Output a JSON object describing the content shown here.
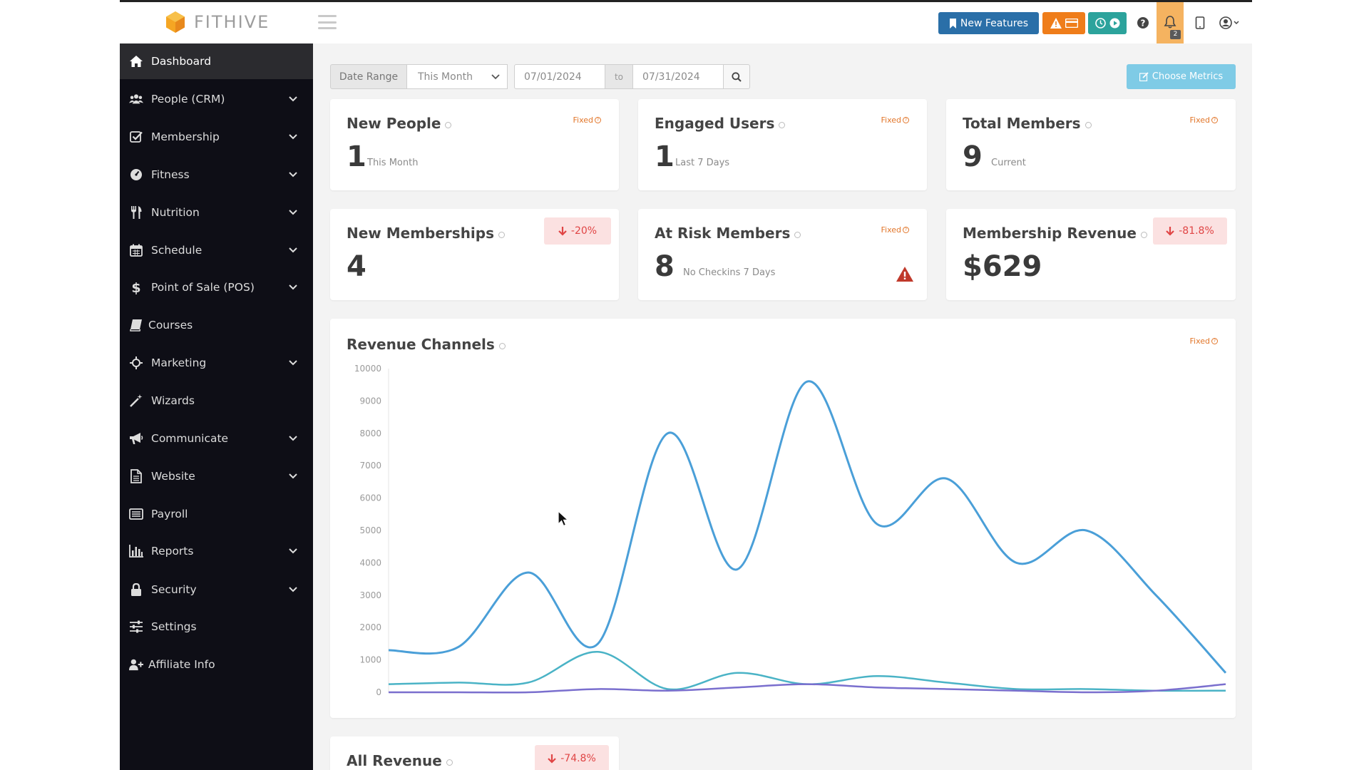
{
  "app": {
    "brand": "FITHIVE"
  },
  "topbar": {
    "new_features_label": "New Features",
    "notification_count": "2",
    "icons": [
      "bookmark-icon",
      "warning-icon",
      "card-icon",
      "clock-icon",
      "play-icon",
      "help-icon",
      "bell-icon",
      "tablet-icon",
      "user-circle-icon"
    ]
  },
  "sidebar": {
    "items": [
      {
        "label": "Dashboard",
        "icon": "home-icon",
        "active": true,
        "has_children": false
      },
      {
        "label": "People (CRM)",
        "icon": "people-icon",
        "has_children": true
      },
      {
        "label": "Membership",
        "icon": "checkbox-icon",
        "has_children": true
      },
      {
        "label": "Fitness",
        "icon": "tachometer-icon",
        "has_children": true
      },
      {
        "label": "Nutrition",
        "icon": "utensils-icon",
        "has_children": true
      },
      {
        "label": "Schedule",
        "icon": "calendar-icon",
        "has_children": true
      },
      {
        "label": "Point of Sale (POS)",
        "icon": "dollar-icon",
        "has_children": true
      },
      {
        "label": "Courses",
        "icon": "book-icon",
        "has_children": false
      },
      {
        "label": "Marketing",
        "icon": "crosshair-icon",
        "has_children": true
      },
      {
        "label": "Wizards",
        "icon": "magic-wand-icon",
        "has_children": false
      },
      {
        "label": "Communicate",
        "icon": "bullhorn-icon",
        "has_children": true
      },
      {
        "label": "Website",
        "icon": "file-icon",
        "has_children": true
      },
      {
        "label": "Payroll",
        "icon": "list-alt-icon",
        "has_children": false
      },
      {
        "label": "Reports",
        "icon": "bar-chart-icon",
        "has_children": true
      },
      {
        "label": "Security",
        "icon": "lock-icon",
        "has_children": true
      },
      {
        "label": "Settings",
        "icon": "sliders-icon",
        "has_children": false
      },
      {
        "label": "Affiliate Info",
        "icon": "user-plus-icon",
        "has_children": false
      }
    ]
  },
  "filters": {
    "date_range_label": "Date Range",
    "range_select": "This Month",
    "start_date": "07/01/2024",
    "to_label": "to",
    "end_date": "07/31/2024",
    "choose_metrics_label": "Choose Metrics"
  },
  "cards": {
    "new_people": {
      "title": "New People",
      "fixed": "Fixed",
      "value": "1",
      "sub": "This Month"
    },
    "engaged_users": {
      "title": "Engaged Users",
      "fixed": "Fixed",
      "value": "1",
      "sub": "Last 7 Days"
    },
    "total_members": {
      "title": "Total Members",
      "fixed": "Fixed",
      "value": "9",
      "sub": "Current"
    },
    "new_memberships": {
      "title": "New Memberships",
      "trend": "-20%",
      "value": "4"
    },
    "at_risk_members": {
      "title": "At Risk Members",
      "fixed": "Fixed",
      "value": "8",
      "sub": "No Checkins 7 Days"
    },
    "membership_revenue": {
      "title": "Membership Revenue",
      "trend": "-81.8%",
      "value": "$629"
    },
    "revenue_channels": {
      "title": "Revenue Channels",
      "fixed": "Fixed"
    },
    "all_revenue": {
      "title": "All Revenue",
      "trend": "-74.8%"
    }
  },
  "chart_data": {
    "type": "line",
    "title": "Revenue Channels",
    "xlabel": "",
    "ylabel": "",
    "ylim": [
      0,
      10000
    ],
    "yticks": [
      0,
      1000,
      2000,
      3000,
      4000,
      5000,
      6000,
      7000,
      8000,
      9000,
      10000
    ],
    "grid": false,
    "legend": "none",
    "x": [
      0,
      1,
      2,
      3,
      4,
      5,
      6,
      7,
      8,
      9,
      10,
      11,
      12
    ],
    "series": [
      {
        "color": "#4a9fd8",
        "values": [
          1300,
          1400,
          3700,
          1500,
          8000,
          3800,
          9600,
          5200,
          6600,
          4000,
          5000,
          3000,
          600
        ]
      },
      {
        "color": "#4ab3c6",
        "values": [
          250,
          300,
          300,
          1250,
          100,
          600,
          250,
          500,
          300,
          100,
          100,
          50,
          50
        ]
      },
      {
        "color": "#7a6fce",
        "values": [
          0,
          0,
          0,
          100,
          50,
          150,
          250,
          150,
          100,
          50,
          0,
          50,
          250
        ]
      }
    ]
  }
}
